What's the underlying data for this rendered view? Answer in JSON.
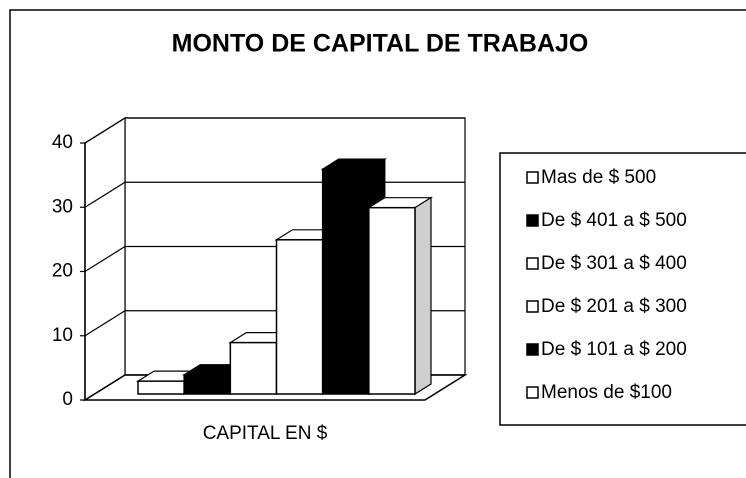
{
  "chart_data": {
    "type": "bar3d",
    "title": "MONTO DE CAPITAL DE TRABAJO",
    "categories": [
      "CAPITAL EN $"
    ],
    "series": [
      {
        "name": "Menos de $100",
        "color": "#ffffff",
        "values": [
          2
        ]
      },
      {
        "name": "De $ 101 a $ 200",
        "color": "#000000",
        "values": [
          3
        ]
      },
      {
        "name": "De $ 201 a $ 300",
        "color": "#ffffff",
        "values": [
          8
        ]
      },
      {
        "name": "De $ 301 a $ 400",
        "color": "#ffffff",
        "values": [
          24
        ]
      },
      {
        "name": "De $ 401 a $ 500",
        "color": "#000000",
        "values": [
          35
        ]
      },
      {
        "name": "Mas de $ 500",
        "color": "#ffffff",
        "values": [
          29
        ]
      }
    ],
    "ylim": [
      0,
      40
    ],
    "yticks": [
      0,
      10,
      20,
      30,
      40
    ],
    "grid": true,
    "legend": "right"
  }
}
